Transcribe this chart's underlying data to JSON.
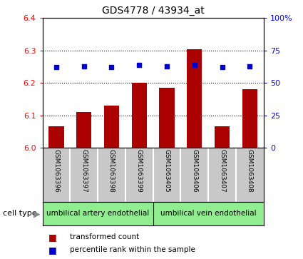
{
  "title": "GDS4778 / 43934_at",
  "samples": [
    "GSM1063396",
    "GSM1063397",
    "GSM1063398",
    "GSM1063399",
    "GSM1063405",
    "GSM1063406",
    "GSM1063407",
    "GSM1063408"
  ],
  "transformed_counts": [
    6.065,
    6.11,
    6.13,
    6.2,
    6.185,
    6.305,
    6.065,
    6.18
  ],
  "percentile_ranks": [
    62,
    63,
    62,
    64,
    63,
    64,
    62,
    63
  ],
  "ylim_left": [
    6.0,
    6.4
  ],
  "ylim_right": [
    0,
    100
  ],
  "yticks_left": [
    6.0,
    6.1,
    6.2,
    6.3,
    6.4
  ],
  "yticks_right": [
    0,
    25,
    50,
    75,
    100
  ],
  "ytick_labels_right": [
    "0",
    "25",
    "50",
    "75",
    "100%"
  ],
  "bar_color": "#aa0000",
  "dot_color": "#0000cc",
  "cell_type_groups": [
    {
      "label": "umbilical artery endothelial",
      "count": 4
    },
    {
      "label": "umbilical vein endothelial",
      "count": 4
    }
  ],
  "cell_type_bg": "#90ee90",
  "cell_type_label": "cell type",
  "legend_items": [
    {
      "label": "transformed count",
      "color": "#aa0000"
    },
    {
      "label": "percentile rank within the sample",
      "color": "#0000cc"
    }
  ],
  "background_color": "#ffffff",
  "label_area_color": "#c8c8c8"
}
